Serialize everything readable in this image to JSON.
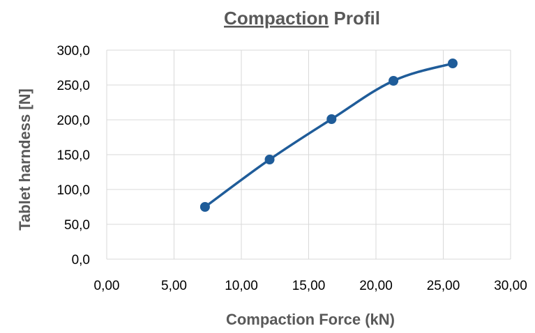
{
  "chart_data": {
    "type": "scatter",
    "title_part1": "Compaction",
    "title_part2": " Profil",
    "xlabel": "Compaction Force (kN)",
    "ylabel": "Tablet harndess [N]",
    "xlim": [
      0,
      30
    ],
    "ylim": [
      0,
      300
    ],
    "x_ticks": [
      "0,00",
      "5,00",
      "10,00",
      "15,00",
      "20,00",
      "25,00",
      "30,00"
    ],
    "y_ticks": [
      "0,0",
      "50,0",
      "100,0",
      "150,0",
      "200,0",
      "250,0",
      "300,0"
    ],
    "grid": true,
    "line": "smooth",
    "series": [
      {
        "color": "#1f5c99",
        "x": [
          7.3,
          12.1,
          16.7,
          21.3,
          25.7
        ],
        "y": [
          75,
          143,
          201,
          256,
          281
        ]
      }
    ]
  }
}
